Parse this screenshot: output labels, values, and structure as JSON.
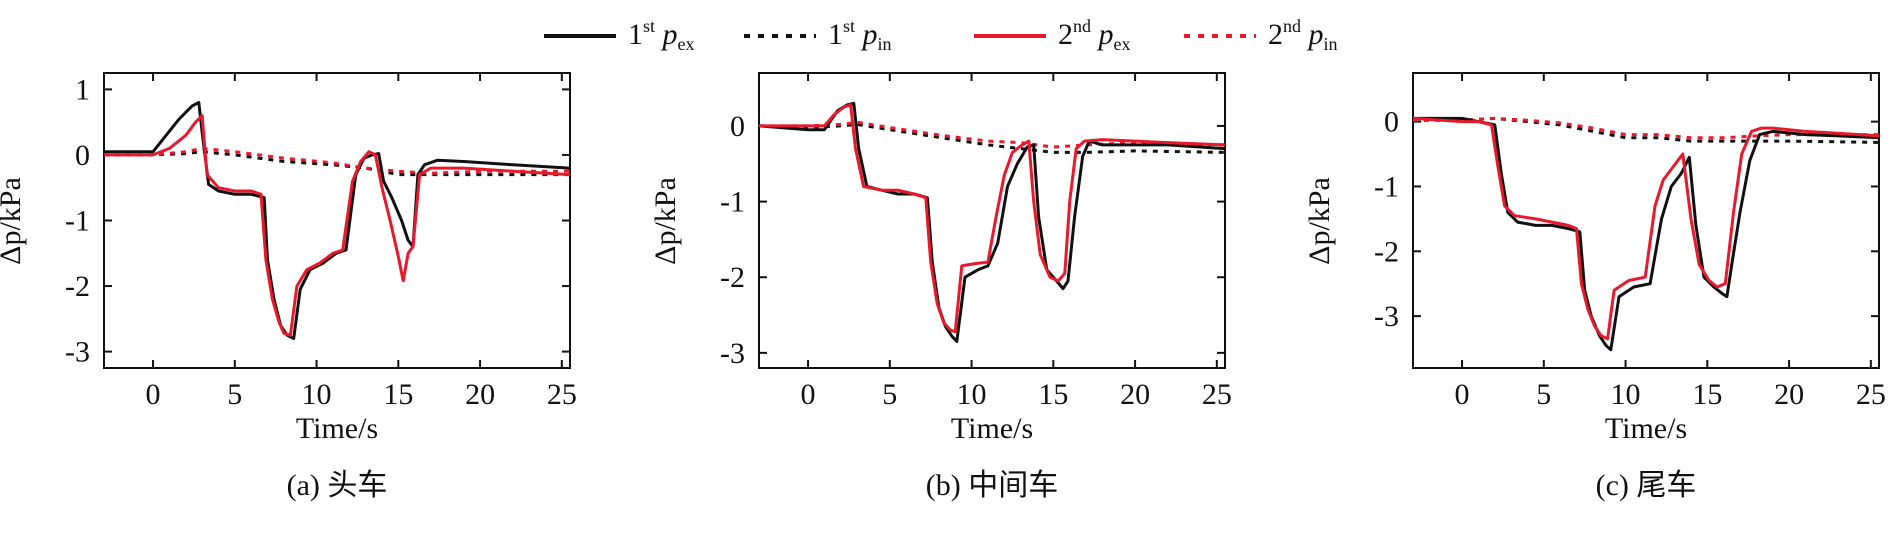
{
  "legend": [
    {
      "base": "1",
      "sup": "st",
      "sym": "p",
      "sub": "ex",
      "color": "#111111",
      "dash": "solid"
    },
    {
      "base": "1",
      "sup": "st",
      "sym": "p",
      "sub": "in",
      "color": "#111111",
      "dash": "dotted"
    },
    {
      "base": "2",
      "sup": "nd",
      "sym": "p",
      "sub": "ex",
      "color": "#e8192c",
      "dash": "solid"
    },
    {
      "base": "2",
      "sup": "nd",
      "sym": "p",
      "sub": "in",
      "color": "#e8192c",
      "dash": "dotted"
    }
  ],
  "chart_data": [
    {
      "type": "line",
      "caption": "(a) 头车",
      "xlabel": "Time/s",
      "ylabel": "Δp/kPa",
      "xlim": [
        -3,
        25.5
      ],
      "ylim": [
        -3.25,
        1.25
      ],
      "xticks": [
        0,
        5,
        10,
        15,
        20,
        25
      ],
      "yticks": [
        1,
        0,
        -1,
        -2,
        -3
      ],
      "series": [
        {
          "key": "1st_pex",
          "color": "#111111",
          "dash": "solid",
          "x": [
            -3,
            0,
            0.8,
            1.6,
            2.4,
            2.8,
            3.0,
            3.4,
            4,
            5,
            6,
            6.8,
            7.0,
            7.4,
            7.8,
            8.2,
            8.6,
            9.0,
            9.6,
            10.4,
            11.2,
            11.8,
            12.4,
            12.9,
            13.4,
            13.8,
            14.1,
            14.6,
            15.2,
            15.6,
            15.9,
            16.2,
            16.6,
            17.4,
            19,
            22,
            25.5
          ],
          "y": [
            0.05,
            0.05,
            0.3,
            0.55,
            0.75,
            0.8,
            0.35,
            -0.45,
            -0.55,
            -0.6,
            -0.6,
            -0.65,
            -1.6,
            -2.2,
            -2.6,
            -2.75,
            -2.8,
            -2.05,
            -1.75,
            -1.65,
            -1.5,
            -1.45,
            -0.3,
            -0.05,
            0.0,
            0.02,
            -0.4,
            -0.65,
            -1.0,
            -1.3,
            -1.4,
            -0.3,
            -0.15,
            -0.08,
            -0.1,
            -0.15,
            -0.2
          ]
        },
        {
          "key": "1st_pin",
          "color": "#111111",
          "dash": "dotted",
          "x": [
            -3,
            0,
            2,
            3,
            5,
            8,
            11,
            13,
            15,
            17,
            20,
            25.5
          ],
          "y": [
            0.0,
            0.0,
            0.02,
            0.05,
            0.0,
            -0.1,
            -0.15,
            -0.2,
            -0.3,
            -0.3,
            -0.3,
            -0.3
          ]
        },
        {
          "key": "2nd_pex",
          "color": "#e8192c",
          "dash": "solid",
          "x": [
            -3,
            0,
            1,
            2,
            2.6,
            3.0,
            3.3,
            4,
            5,
            6,
            6.6,
            6.9,
            7.3,
            7.7,
            8.0,
            8.4,
            8.8,
            9.4,
            10.2,
            11,
            11.6,
            12.2,
            12.7,
            13.2,
            13.6,
            14.0,
            14.5,
            15.0,
            15.3,
            15.6,
            15.9,
            16.3,
            17,
            19,
            22,
            25.5
          ],
          "y": [
            0.0,
            0.0,
            0.1,
            0.3,
            0.5,
            0.6,
            -0.3,
            -0.5,
            -0.55,
            -0.55,
            -0.6,
            -1.6,
            -2.2,
            -2.55,
            -2.72,
            -2.75,
            -2.0,
            -1.75,
            -1.65,
            -1.5,
            -1.45,
            -0.4,
            -0.1,
            0.05,
            0.0,
            -0.5,
            -1.0,
            -1.55,
            -1.92,
            -1.5,
            -1.4,
            -0.3,
            -0.2,
            -0.2,
            -0.25,
            -0.3
          ]
        },
        {
          "key": "2nd_pin",
          "color": "#e8192c",
          "dash": "dotted",
          "x": [
            -3,
            0,
            2,
            3,
            5,
            8,
            11,
            13,
            15,
            17,
            20,
            25.5
          ],
          "y": [
            0.0,
            0.0,
            0.05,
            0.1,
            0.05,
            -0.05,
            -0.12,
            -0.2,
            -0.25,
            -0.28,
            -0.25,
            -0.25
          ]
        }
      ]
    },
    {
      "type": "line",
      "caption": "(b) 中间车",
      "xlabel": "Time/s",
      "ylabel": "Δp/kPa",
      "xlim": [
        -3,
        25.5
      ],
      "ylim": [
        -3.2,
        0.7
      ],
      "xticks": [
        0,
        5,
        10,
        15,
        20,
        25
      ],
      "yticks": [
        0,
        -1,
        -2,
        -3
      ],
      "series": [
        {
          "key": "1st_pex",
          "color": "#111111",
          "dash": "solid",
          "x": [
            -3,
            0,
            1,
            1.8,
            2.4,
            2.8,
            3.1,
            3.6,
            4.5,
            5.5,
            6.5,
            7.3,
            7.6,
            8.0,
            8.4,
            8.8,
            9.1,
            9.6,
            10.4,
            11,
            11.6,
            12.2,
            12.8,
            13.4,
            13.8,
            14.1,
            14.6,
            15.2,
            15.6,
            15.9,
            16.3,
            16.8,
            17.2,
            18,
            20,
            22,
            25.5
          ],
          "y": [
            0.0,
            -0.05,
            -0.05,
            0.2,
            0.28,
            0.3,
            -0.3,
            -0.8,
            -0.85,
            -0.9,
            -0.9,
            -0.95,
            -1.8,
            -2.4,
            -2.65,
            -2.78,
            -2.85,
            -2.0,
            -1.9,
            -1.85,
            -1.55,
            -0.8,
            -0.5,
            -0.28,
            -0.25,
            -1.2,
            -1.9,
            -2.05,
            -2.15,
            -2.05,
            -1.2,
            -0.4,
            -0.2,
            -0.25,
            -0.25,
            -0.25,
            -0.3
          ]
        },
        {
          "key": "1st_pin",
          "color": "#111111",
          "dash": "dotted",
          "x": [
            -3,
            0,
            2,
            3,
            5,
            8,
            11,
            13,
            15,
            17,
            20,
            25.5
          ],
          "y": [
            0.0,
            -0.02,
            0.0,
            0.02,
            -0.05,
            -0.15,
            -0.25,
            -0.3,
            -0.35,
            -0.35,
            -0.33,
            -0.35
          ]
        },
        {
          "key": "2nd_pex",
          "color": "#e8192c",
          "dash": "solid",
          "x": [
            -3,
            0,
            1,
            1.6,
            2.2,
            2.6,
            2.9,
            3.4,
            4.5,
            5.5,
            6.5,
            7.2,
            7.5,
            7.9,
            8.3,
            8.7,
            9.0,
            9.4,
            10.2,
            11,
            11.5,
            12.0,
            12.5,
            13.1,
            13.5,
            13.8,
            14.2,
            14.8,
            15.3,
            15.7,
            16.0,
            16.4,
            16.9,
            18,
            20,
            22,
            25.5
          ],
          "y": [
            0.0,
            0.0,
            0.0,
            0.15,
            0.25,
            0.28,
            -0.3,
            -0.8,
            -0.85,
            -0.85,
            -0.9,
            -0.95,
            -1.8,
            -2.35,
            -2.6,
            -2.7,
            -2.72,
            -1.85,
            -1.82,
            -1.8,
            -1.2,
            -0.65,
            -0.35,
            -0.25,
            -0.2,
            -1.0,
            -1.7,
            -2.0,
            -2.05,
            -1.95,
            -1.0,
            -0.3,
            -0.2,
            -0.18,
            -0.2,
            -0.22,
            -0.25
          ]
        },
        {
          "key": "2nd_pin",
          "color": "#e8192c",
          "dash": "dotted",
          "x": [
            -3,
            0,
            2,
            3,
            5,
            8,
            11,
            13,
            15,
            17,
            20,
            25.5
          ],
          "y": [
            0.0,
            0.0,
            0.02,
            0.05,
            -0.02,
            -0.12,
            -0.2,
            -0.22,
            -0.28,
            -0.25,
            -0.22,
            -0.25
          ]
        }
      ]
    },
    {
      "type": "line",
      "caption": "(c) 尾车",
      "xlabel": "Time/s",
      "ylabel": "Δp/kPa",
      "xlim": [
        -3,
        25.5
      ],
      "ylim": [
        -3.8,
        0.75
      ],
      "xticks": [
        0,
        5,
        10,
        15,
        20,
        25
      ],
      "yticks": [
        0,
        -1,
        -2,
        -3
      ],
      "series": [
        {
          "key": "1st_pex",
          "color": "#111111",
          "dash": "solid",
          "x": [
            -3,
            0,
            1,
            2.0,
            2.4,
            2.8,
            3.4,
            4.5,
            5.5,
            6.5,
            7.2,
            7.5,
            7.9,
            8.4,
            8.8,
            9.1,
            9.6,
            10.5,
            11.5,
            12.2,
            12.8,
            13.4,
            13.9,
            14.3,
            14.8,
            15.4,
            15.9,
            16.2,
            16.5,
            17.0,
            17.6,
            18.2,
            19,
            21,
            23,
            25.5
          ],
          "y": [
            0.05,
            0.05,
            0.0,
            -0.05,
            -0.8,
            -1.4,
            -1.55,
            -1.6,
            -1.6,
            -1.65,
            -1.7,
            -2.6,
            -3.0,
            -3.3,
            -3.45,
            -3.52,
            -2.7,
            -2.55,
            -2.5,
            -1.5,
            -1.0,
            -0.8,
            -0.55,
            -1.6,
            -2.4,
            -2.55,
            -2.65,
            -2.7,
            -2.2,
            -1.4,
            -0.6,
            -0.2,
            -0.15,
            -0.2,
            -0.22,
            -0.25
          ]
        },
        {
          "key": "1st_pin",
          "color": "#111111",
          "dash": "dotted",
          "x": [
            -3,
            0,
            2,
            4,
            6,
            8,
            10,
            12,
            14,
            16,
            18,
            20,
            25.5
          ],
          "y": [
            0.02,
            0.02,
            0.05,
            0.0,
            -0.05,
            -0.15,
            -0.25,
            -0.25,
            -0.3,
            -0.3,
            -0.3,
            -0.3,
            -0.32
          ]
        },
        {
          "key": "2nd_pex",
          "color": "#e8192c",
          "dash": "solid",
          "x": [
            -3,
            0,
            1,
            1.8,
            2.2,
            2.6,
            3.2,
            4.5,
            5.5,
            6.5,
            7.0,
            7.3,
            7.7,
            8.1,
            8.5,
            8.9,
            9.3,
            10.2,
            11.2,
            11.8,
            12.3,
            12.9,
            13.5,
            14.0,
            14.5,
            15.1,
            15.6,
            16.1,
            16.6,
            17.1,
            17.7,
            18.3,
            19,
            21,
            23,
            25.5
          ],
          "y": [
            0.05,
            0.0,
            0.0,
            -0.05,
            -0.7,
            -1.3,
            -1.45,
            -1.5,
            -1.55,
            -1.6,
            -1.65,
            -2.5,
            -2.9,
            -3.15,
            -3.3,
            -3.35,
            -2.6,
            -2.45,
            -2.4,
            -1.3,
            -0.9,
            -0.7,
            -0.5,
            -1.5,
            -2.2,
            -2.45,
            -2.55,
            -2.5,
            -1.4,
            -0.5,
            -0.15,
            -0.1,
            -0.1,
            -0.15,
            -0.18,
            -0.22
          ]
        },
        {
          "key": "2nd_pin",
          "color": "#e8192c",
          "dash": "dotted",
          "x": [
            -3,
            0,
            2,
            4,
            6,
            8,
            10,
            12,
            14,
            16,
            18,
            20,
            25.5
          ],
          "y": [
            0.02,
            0.02,
            0.05,
            0.02,
            -0.02,
            -0.1,
            -0.2,
            -0.2,
            -0.25,
            -0.25,
            -0.22,
            -0.2,
            -0.2
          ]
        }
      ]
    }
  ]
}
